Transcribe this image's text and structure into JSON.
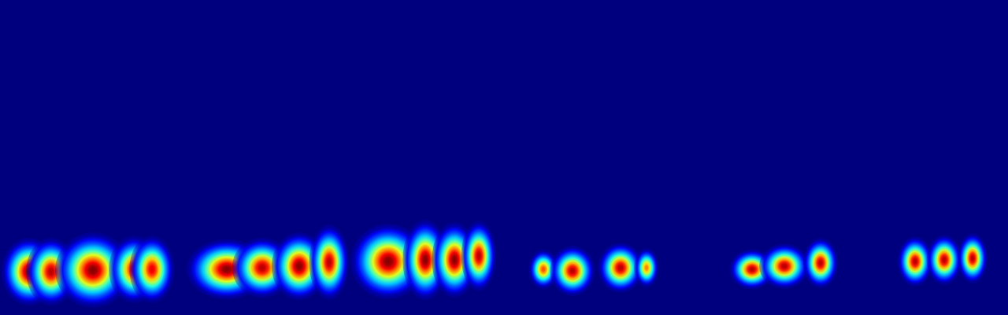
{
  "chart_data": {
    "type": "heatmap",
    "x": [
      3.7,
      6.5,
      11.8,
      17.0,
      19.3,
      28.8,
      33.3,
      38.0,
      41.8,
      49.3,
      54.0,
      57.7,
      60.8,
      69.0,
      72.7,
      78.8,
      82.1,
      95.5,
      99.6,
      104.2,
      116.2,
      119.9,
      123.5
    ],
    "y": [
      5.5,
      5.5,
      5.7,
      5.8,
      5.8,
      5.8,
      6.0,
      6.2,
      6.7,
      6.8,
      7.0,
      7.0,
      7.5,
      5.8,
      5.6,
      6.0,
      6.0,
      5.8,
      6.2,
      6.6,
      6.8,
      7.0,
      7.2
    ],
    "width": [
      2.2,
      2.0,
      3.0,
      2.0,
      1.8,
      3.2,
      2.4,
      2.2,
      1.6,
      3.0,
      1.8,
      1.8,
      1.4,
      1.2,
      1.8,
      1.8,
      1.0,
      1.8,
      2.0,
      1.4,
      1.4,
      1.4,
      1.2
    ],
    "height": [
      2.7,
      2.7,
      3.0,
      2.7,
      2.7,
      2.4,
      2.4,
      2.7,
      3.0,
      3.0,
      3.2,
      3.0,
      2.8,
      1.6,
      2.0,
      2.0,
      1.6,
      1.6,
      1.8,
      2.0,
      2.0,
      2.0,
      2.0
    ],
    "values": [
      1.0,
      0.95,
      1.0,
      0.9,
      0.9,
      1.0,
      0.95,
      1.0,
      0.95,
      1.0,
      1.0,
      1.0,
      0.95,
      0.8,
      0.95,
      0.95,
      0.75,
      0.95,
      0.95,
      0.95,
      0.95,
      0.95,
      0.95
    ],
    "xlim": [
      0,
      128
    ],
    "ylim": [
      0,
      40
    ],
    "color_range": [
      0,
      1
    ],
    "tick_labels": false,
    "grid": false
  }
}
